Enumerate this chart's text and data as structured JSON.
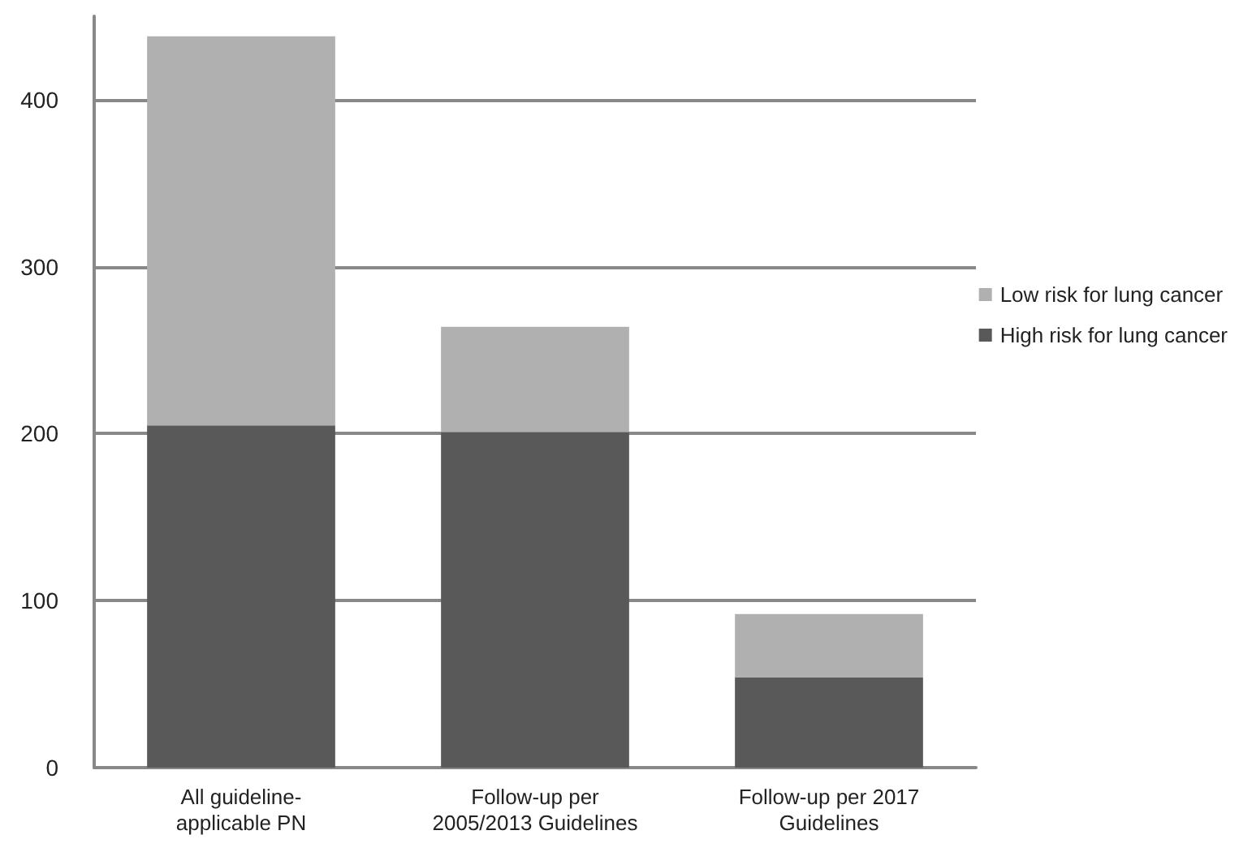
{
  "chart_data": {
    "type": "bar",
    "stacked": true,
    "categories": [
      "All guideline-\napplicable PN",
      "Follow-up per\n2005/2013 Guidelines",
      "Follow-up per 2017\nGuidelines"
    ],
    "series": [
      {
        "name": "High risk for lung cancer",
        "color": "#595959",
        "values": [
          205,
          201,
          54
        ]
      },
      {
        "name": "Low risk for lung cancer",
        "color": "#b0b0b0",
        "values": [
          233,
          63,
          38
        ]
      }
    ],
    "ylim": [
      0,
      450
    ],
    "yticks": [
      0,
      100,
      200,
      300,
      400
    ],
    "grid": "y",
    "legend": "right"
  }
}
